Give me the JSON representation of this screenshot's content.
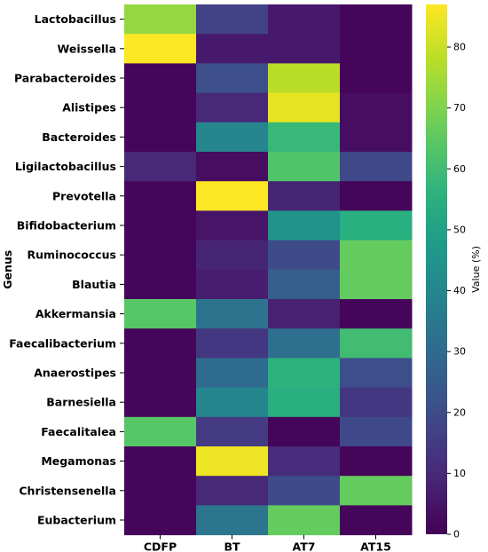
{
  "chart_data": {
    "type": "heatmap",
    "ylabel": "Genus",
    "colorbar_label": "Value (%)",
    "colormap": "viridis",
    "vmin": 0,
    "vmax": 87,
    "colorbar_ticks": [
      0,
      10,
      20,
      30,
      40,
      50,
      60,
      70,
      80
    ],
    "columns": [
      "CDFP",
      "BT",
      "AT7",
      "AT15"
    ],
    "rows": [
      "Lactobacillus",
      "Weissella",
      "Parabacteroides",
      "Alistipes",
      "Bacteroides",
      "Ligilactobacillus",
      "Prevotella",
      "Bifidobacterium",
      "Ruminococcus",
      "Blautia",
      "Akkermansia",
      "Faecalibacterium",
      "Anaerostipes",
      "Barnesiella",
      "Faecalitalea",
      "Megamonas",
      "Christensenella",
      "Eubacterium"
    ],
    "values": [
      [
        73,
        17,
        6,
        1
      ],
      [
        87,
        6,
        6,
        1
      ],
      [
        1,
        21,
        78,
        1
      ],
      [
        1,
        10,
        84,
        3
      ],
      [
        1,
        40,
        58,
        3
      ],
      [
        10,
        3,
        63,
        19
      ],
      [
        1,
        87,
        9,
        1
      ],
      [
        1,
        5,
        45,
        55
      ],
      [
        1,
        9,
        20,
        66
      ],
      [
        1,
        7,
        26,
        66
      ],
      [
        64,
        33,
        8,
        1
      ],
      [
        1,
        14,
        31,
        60
      ],
      [
        1,
        30,
        56,
        21
      ],
      [
        1,
        40,
        55,
        14
      ],
      [
        64,
        15,
        1,
        19
      ],
      [
        1,
        85,
        11,
        1
      ],
      [
        1,
        10,
        20,
        66
      ],
      [
        1,
        34,
        66,
        1
      ]
    ]
  }
}
